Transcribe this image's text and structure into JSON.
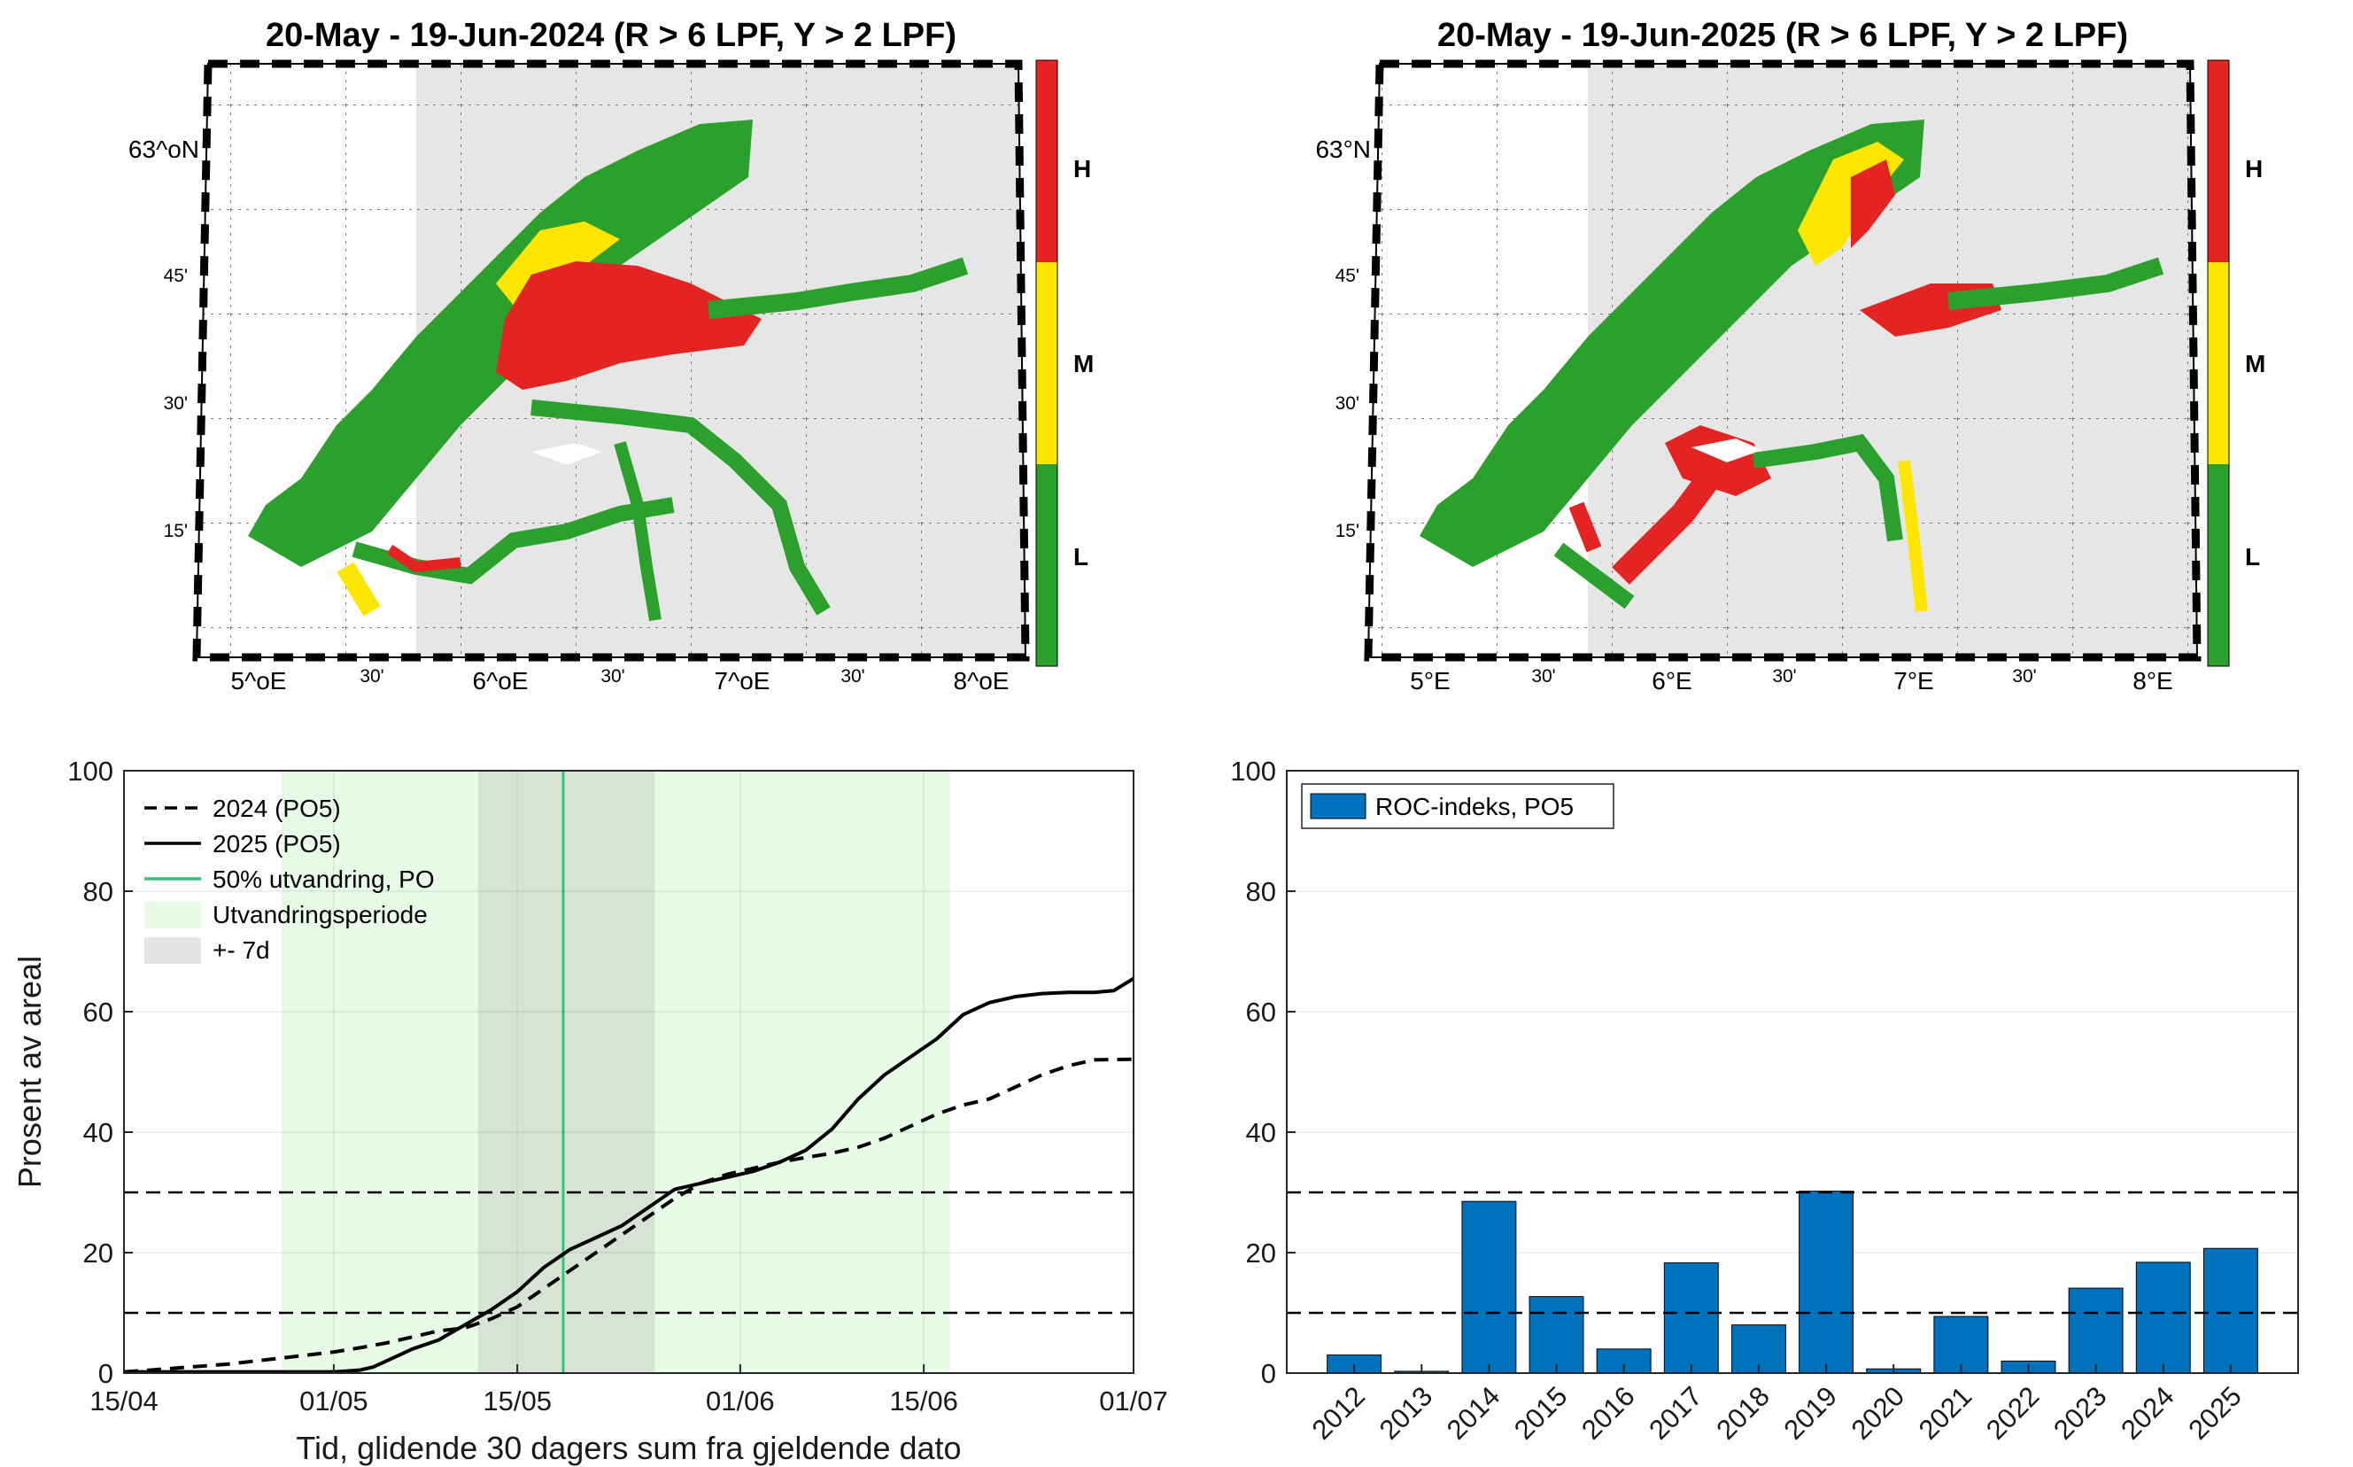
{
  "maps": [
    {
      "title": "20-May - 19-Jun-2024  (R > 6 LPF, Y > 2 LPF)",
      "lon_labels": [
        "5^oE",
        "6^oE",
        "7^oE",
        "8^oE"
      ],
      "lon_minor": [
        "30'",
        "30'",
        "30'"
      ],
      "lat_labels": [
        "63^oN",
        "45'",
        "30'",
        "15'"
      ],
      "colorbar": [
        "H",
        "M",
        "L"
      ]
    },
    {
      "title": "20-May - 19-Jun-2025  (R > 6 LPF, Y > 2 LPF)",
      "lon_labels": [
        "5°E",
        "6°E",
        "7°E",
        "8°E"
      ],
      "lon_minor": [
        "30'",
        "30'",
        "30'"
      ],
      "lat_labels": [
        "63°N",
        "45'",
        "30'",
        "15'"
      ],
      "colorbar": [
        "H",
        "M",
        "L"
      ]
    }
  ],
  "colors": {
    "high": "#e32422",
    "medium": "#ffe600",
    "low": "#2ca02c",
    "land": "#e6e6e6",
    "bar": "#0072bd",
    "period": "#e8fbe6",
    "window": "#c8d6c6",
    "migration_line": "#3cbf7a"
  },
  "chart_data": [
    {
      "type": "line",
      "xlabel": "Tid, glidende 30 dagers sum fra gjeldende dato",
      "ylabel": "Prosent av areal",
      "ylim": [
        0,
        100
      ],
      "y_ticks": [
        "0",
        "20",
        "40",
        "60",
        "80",
        "100"
      ],
      "x_ticks": [
        "15/04",
        "01/05",
        "15/05",
        "01/06",
        "15/06",
        "01/07"
      ],
      "x_tick_days": [
        0,
        16,
        30,
        47,
        61,
        77
      ],
      "xlim_days": [
        0,
        77
      ],
      "threshold_lines": [
        10,
        30
      ],
      "migration_period_days": [
        12,
        63
      ],
      "window_days": [
        27,
        40.5
      ],
      "migration_50pct_day": 33.5,
      "legend": [
        "2024 (PO5)",
        "2025 (PO5)",
        "50% utvandring, PO",
        "Utvandringsperiode",
        "+- 7d"
      ],
      "series": [
        {
          "name": "2024 (PO5)",
          "style": "dashed",
          "x": [
            0,
            2,
            5,
            8,
            10,
            12,
            14,
            16,
            18,
            20,
            22,
            24,
            26,
            28,
            30,
            32,
            34,
            36,
            38,
            40,
            42,
            44,
            46,
            48,
            50,
            52,
            54,
            56,
            58,
            60,
            62,
            64,
            66,
            68,
            70,
            72,
            74,
            77
          ],
          "values": [
            0.2,
            0.5,
            1.0,
            1.5,
            2.0,
            2.5,
            3.0,
            3.5,
            4.2,
            5.0,
            6.0,
            7.0,
            7.5,
            9.0,
            11.0,
            14.0,
            17.0,
            20.0,
            23.0,
            26.0,
            29.0,
            31.5,
            33.0,
            34.0,
            35.0,
            35.8,
            36.5,
            37.5,
            39.0,
            41.0,
            43.0,
            44.5,
            45.5,
            47.5,
            49.5,
            51.0,
            52.0,
            52.1
          ]
        },
        {
          "name": "2025 (PO5)",
          "style": "solid",
          "x": [
            0,
            5,
            10,
            14,
            16,
            18,
            19,
            20,
            22,
            24,
            26,
            28,
            30,
            32,
            34,
            36,
            38,
            40,
            42,
            44,
            46,
            48,
            50,
            52,
            54,
            56,
            58,
            60,
            62,
            64,
            66,
            68,
            70,
            72,
            74,
            75.5,
            77
          ],
          "values": [
            0.2,
            0.2,
            0.2,
            0.2,
            0.2,
            0.5,
            1.0,
            2.0,
            4.0,
            5.5,
            8.0,
            10.5,
            13.5,
            17.5,
            20.5,
            22.5,
            24.5,
            27.5,
            30.5,
            31.5,
            32.5,
            33.5,
            35.0,
            37.0,
            40.5,
            45.5,
            49.5,
            52.5,
            55.5,
            59.5,
            61.5,
            62.5,
            63.0,
            63.2,
            63.2,
            63.5,
            65.5
          ]
        }
      ]
    },
    {
      "type": "bar",
      "categories": [
        "2012",
        "2013",
        "2014",
        "2015",
        "2016",
        "2017",
        "2018",
        "2019",
        "2020",
        "2021",
        "2022",
        "2023",
        "2024",
        "2025"
      ],
      "values": [
        3.0,
        0.3,
        28.5,
        12.7,
        4.0,
        18.3,
        8.0,
        30.2,
        0.7,
        9.4,
        2.0,
        14.1,
        18.4,
        20.7
      ],
      "ylim": [
        0,
        100
      ],
      "y_ticks": [
        "0",
        "20",
        "40",
        "60",
        "80",
        "100"
      ],
      "threshold_lines": [
        10,
        30
      ],
      "legend": [
        "ROC-indeks, PO5"
      ]
    }
  ]
}
